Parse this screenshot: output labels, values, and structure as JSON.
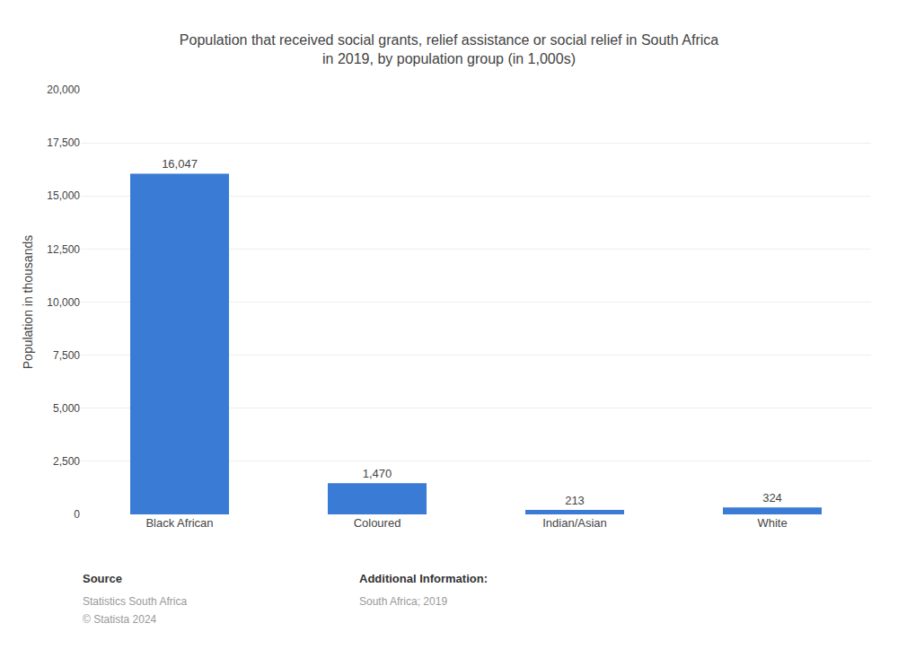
{
  "chart_data": {
    "type": "bar",
    "title": "Population that received social grants, relief assistance or social relief in South Africa\nin 2019, by population group (in 1,000s)",
    "categories": [
      "Black African",
      "Coloured",
      "Indian/Asian",
      "White"
    ],
    "values": [
      16047,
      1470,
      213,
      324
    ],
    "value_labels": [
      "16,047",
      "1,470",
      "213",
      "324"
    ],
    "data_labels": true,
    "color": "#3a7bd5",
    "ylabel": "Population in thousands",
    "ylim": [
      0,
      20000
    ],
    "yticks": [
      0,
      {
        "value": 2500,
        "label": "2,500"
      },
      {
        "value": 5000,
        "label": "5,000"
      },
      {
        "value": 7500,
        "label": "7,500"
      },
      {
        "value": 10000,
        "label": "10,000"
      },
      {
        "value": 12500,
        "label": "12,500"
      },
      {
        "value": 15000,
        "label": "15,000"
      },
      {
        "value": 17500,
        "label": "17,500"
      },
      {
        "value": 20000,
        "label": "20,000"
      }
    ],
    "grid": true,
    "annotations": [
      [
        "Source",
        "Statistics South Africa",
        "© Statista 2024"
      ],
      [
        "Additional Information:",
        "South Africa; 2019"
      ]
    ]
  }
}
